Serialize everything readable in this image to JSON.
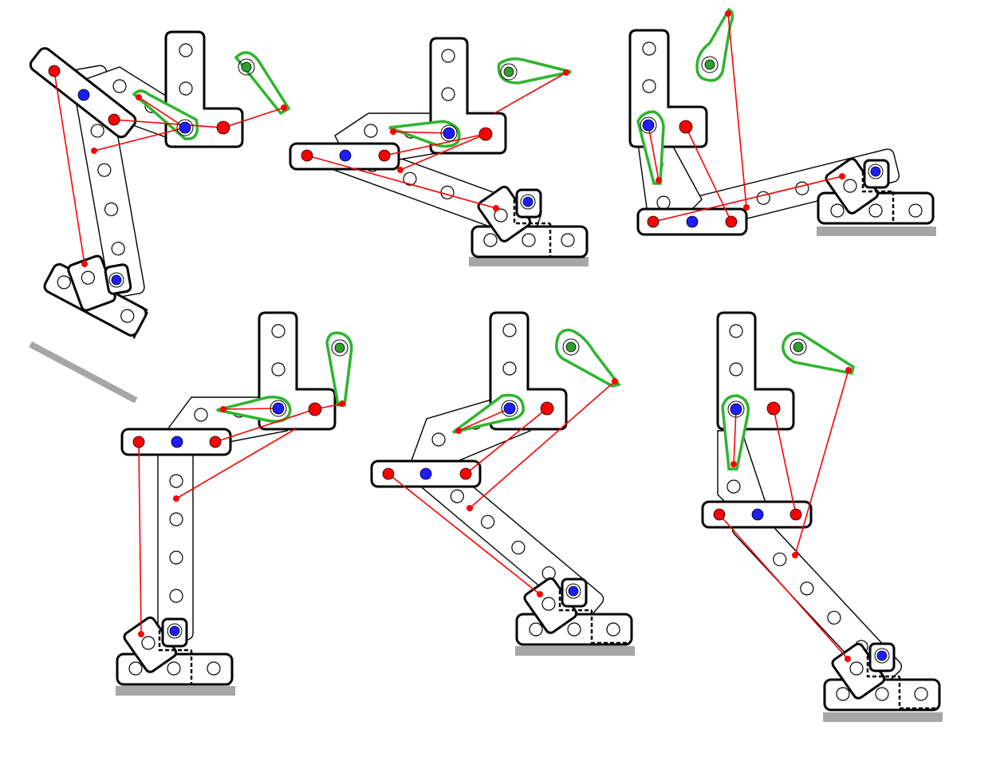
{
  "figure": {
    "subject": "linkage-leg-walking-cycle",
    "frame_count": 6,
    "colors": {
      "background": "#ffffff",
      "outline": "#000000",
      "crank": "#2db52d",
      "rod": "#ff0000",
      "fixed_pivot": "#1d1dff",
      "drive_pivot": "#2e9e2e",
      "ground": "#a6a6a6"
    }
  }
}
